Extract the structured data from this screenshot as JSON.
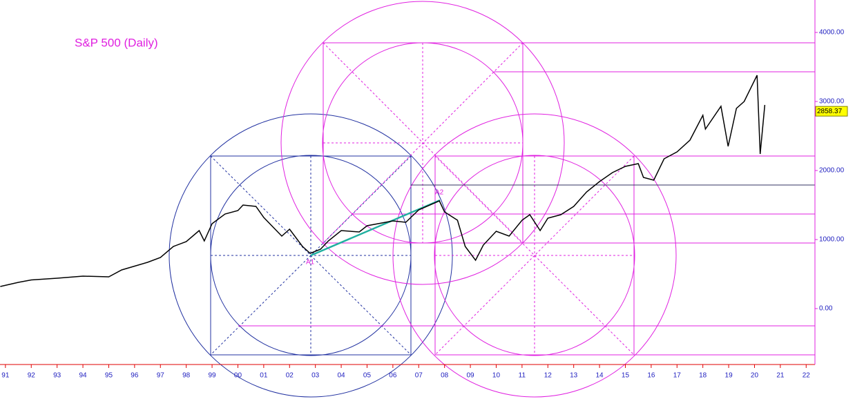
{
  "chart_data": {
    "type": "line",
    "title": "S&P 500 (Daily)",
    "x": [
      1990.8,
      1991.5,
      1992,
      1993,
      1994,
      1995,
      1995.5,
      1996,
      1996.5,
      1997,
      1997.5,
      1998,
      1998.5,
      1998.7,
      1999,
      1999.5,
      2000,
      2000.2,
      2000.7,
      2001,
      2001.7,
      2002,
      2002.5,
      2002.8,
      2003.2,
      2003.5,
      2004,
      2004.7,
      2005,
      2006,
      2006.5,
      2007,
      2007.8,
      2008,
      2008.5,
      2008.8,
      2009.2,
      2009.5,
      2010,
      2010.5,
      2011,
      2011.3,
      2011.7,
      2012,
      2012.5,
      2013,
      2013.5,
      2014,
      2014.5,
      2015,
      2015.5,
      2015.7,
      2016.1,
      2016.5,
      2017,
      2017.5,
      2018,
      2018.1,
      2018.7,
      2018.98,
      2019.3,
      2019.6,
      2020.1,
      2020.22,
      2020.4
    ],
    "values": [
      320,
      380,
      415,
      440,
      470,
      460,
      560,
      615,
      670,
      740,
      900,
      970,
      1130,
      980,
      1230,
      1370,
      1420,
      1500,
      1480,
      1320,
      1050,
      1150,
      900,
      800,
      860,
      980,
      1130,
      1110,
      1200,
      1270,
      1250,
      1430,
      1560,
      1400,
      1280,
      900,
      700,
      920,
      1120,
      1050,
      1280,
      1360,
      1130,
      1310,
      1360,
      1480,
      1690,
      1840,
      1970,
      2060,
      2100,
      1900,
      1860,
      2170,
      2270,
      2440,
      2800,
      2600,
      2930,
      2350,
      2900,
      3000,
      3380,
      2240,
      2950
    ],
    "color": "#000000",
    "last_value": 2858.37,
    "annotations": [
      "A1",
      "A2"
    ],
    "xlim": [
      1990.79,
      2022.34
    ],
    "ylim": [
      -810,
      4470
    ],
    "xticks": [
      {
        "value": 1991,
        "label": "91"
      },
      {
        "value": 1992,
        "label": "92"
      },
      {
        "value": 1993,
        "label": "93"
      },
      {
        "value": 1994,
        "label": "94"
      },
      {
        "value": 1995,
        "label": "95"
      },
      {
        "value": 1996,
        "label": "96"
      },
      {
        "value": 1997,
        "label": "97"
      },
      {
        "value": 1998,
        "label": "98"
      },
      {
        "value": 1999,
        "label": "99"
      },
      {
        "value": 2000,
        "label": "00"
      },
      {
        "value": 2001,
        "label": "01"
      },
      {
        "value": 2002,
        "label": "02"
      },
      {
        "value": 2003,
        "label": "03"
      },
      {
        "value": 2004,
        "label": "04"
      },
      {
        "value": 2005,
        "label": "05"
      },
      {
        "value": 2006,
        "label": "06"
      },
      {
        "value": 2007,
        "label": "07"
      },
      {
        "value": 2008,
        "label": "08"
      },
      {
        "value": 2009,
        "label": "09"
      },
      {
        "value": 2010,
        "label": "10"
      },
      {
        "value": 2011,
        "label": "11"
      },
      {
        "value": 2012,
        "label": "12"
      },
      {
        "value": 2013,
        "label": "13"
      },
      {
        "value": 2014,
        "label": "14"
      },
      {
        "value": 2015,
        "label": "15"
      },
      {
        "value": 2016,
        "label": "16"
      },
      {
        "value": 2017,
        "label": "17"
      },
      {
        "value": 2018,
        "label": "18"
      },
      {
        "value": 2019,
        "label": "19"
      },
      {
        "value": 2020,
        "label": "20"
      },
      {
        "value": 2021,
        "label": "21"
      },
      {
        "value": 2022,
        "label": "22"
      }
    ],
    "yticks": [
      {
        "value": 0,
        "label": "0.00"
      },
      {
        "value": 1000,
        "label": "1000.00"
      },
      {
        "value": 2000,
        "label": "2000.00"
      },
      {
        "value": 3000,
        "label": "3000.00"
      },
      {
        "value": 4000,
        "label": "4000.00"
      }
    ]
  }
}
